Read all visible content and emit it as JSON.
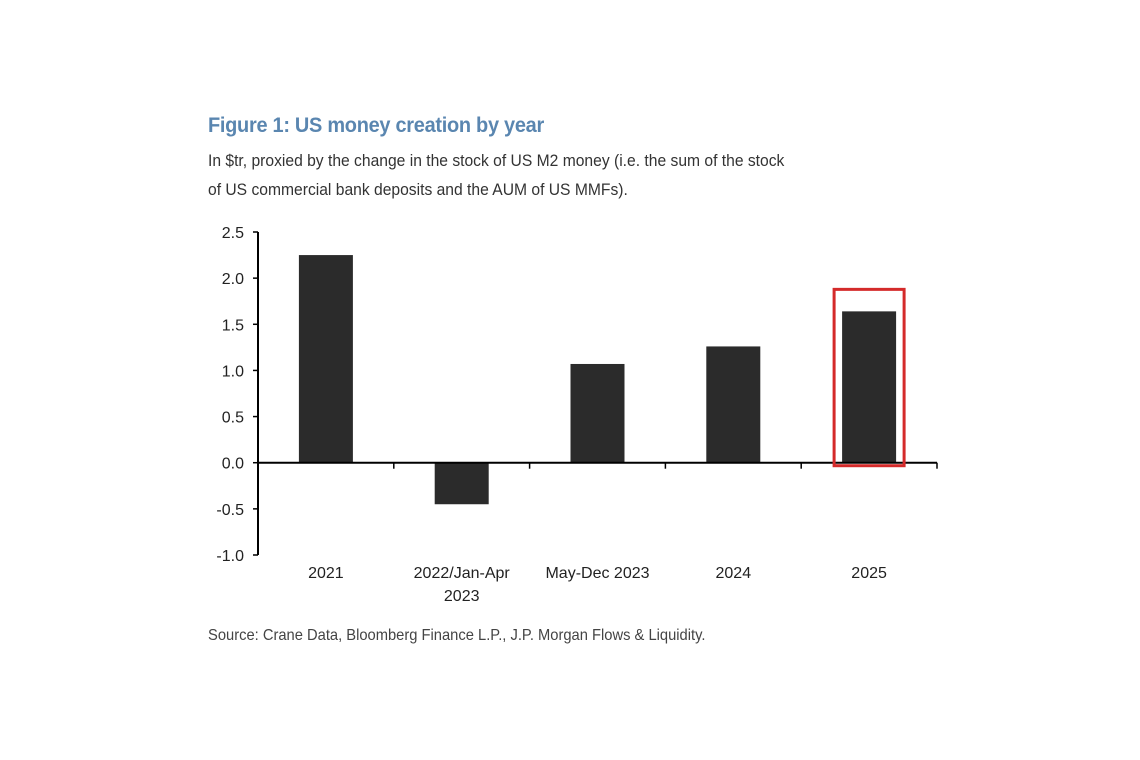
{
  "chart_data": {
    "type": "bar",
    "title": "Figure 1: US money creation by year",
    "subtitle_lines": [
      "In $tr, proxied by the change in the stock of US M2 money (i.e. the sum of the stock",
      "of US commercial bank deposits and the AUM of US MMFs)."
    ],
    "source": "Source: Crane Data, Bloomberg Finance L.P., J.P. Morgan Flows & Liquidity.",
    "categories": [
      [
        "2021"
      ],
      [
        "2022/Jan-Apr",
        "2023"
      ],
      [
        "May-Dec 2023"
      ],
      [
        "2024"
      ],
      [
        "2025"
      ]
    ],
    "values": [
      2.25,
      -0.45,
      1.07,
      1.26,
      1.64
    ],
    "ylim": [
      -1.0,
      2.5
    ],
    "yticks": [
      "2.5",
      "2.0",
      "1.5",
      "1.0",
      "0.5",
      "0.0",
      "-0.5",
      "-1.0"
    ],
    "ytick_values": [
      2.5,
      2.0,
      1.5,
      1.0,
      0.5,
      0.0,
      -0.5,
      -1.0
    ],
    "grid": false,
    "bar_color": "#2b2b2b",
    "highlight": {
      "category_index": 4,
      "color": "#d42a2a"
    }
  }
}
